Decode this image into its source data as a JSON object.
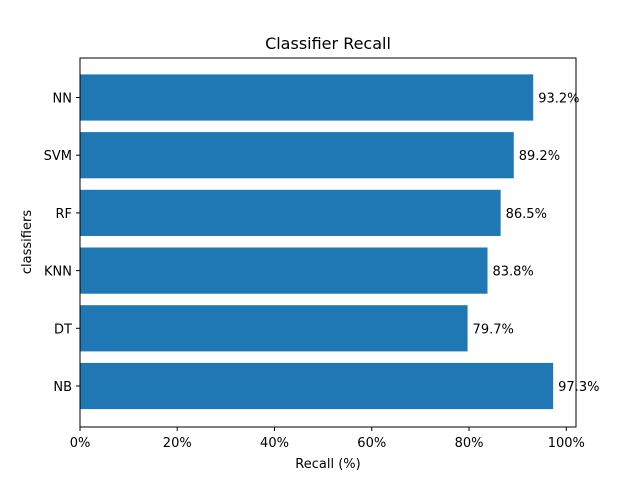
{
  "chart_data": {
    "type": "bar",
    "orientation": "horizontal",
    "title": "Classifier Recall",
    "xlabel": "Recall (%)",
    "ylabel": "classifiers",
    "categories": [
      "NN",
      "SVM",
      "RF",
      "KNN",
      "DT",
      "NB"
    ],
    "values": [
      93.2,
      89.2,
      86.5,
      83.8,
      79.7,
      97.3
    ],
    "data_labels": [
      "93.2%",
      "89.2%",
      "86.5%",
      "83.8%",
      "79.7%",
      "97.3%"
    ],
    "xlim": [
      0,
      102
    ],
    "xticks": [
      0,
      20,
      40,
      60,
      80,
      100
    ],
    "xtick_labels": [
      "0%",
      "20%",
      "40%",
      "60%",
      "80%",
      "100%"
    ],
    "grid": false,
    "bar_color": "#1f77b4"
  }
}
